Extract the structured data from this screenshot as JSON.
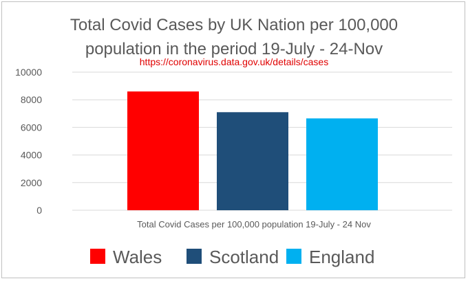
{
  "chart_data": {
    "type": "bar",
    "title_lines": [
      "Total Covid Cases by UK Nation per 100,000",
      "population in the period 19-July - 24-Nov"
    ],
    "source_url": "https://coronavirus.data.gov.uk/details/cases",
    "xlabel": "Total Covid Cases per 100,000 population 19-July - 24 Nov",
    "ylabel": "",
    "ylim": [
      0,
      10000
    ],
    "y_ticks": [
      "0",
      "2000",
      "4000",
      "6000",
      "8000",
      "10000"
    ],
    "grid": true,
    "legend_position": "bottom",
    "series": [
      {
        "name": "Wales",
        "values": [
          8600
        ],
        "color": "#ff0000"
      },
      {
        "name": "Scotland",
        "values": [
          7100
        ],
        "color": "#1f4e79"
      },
      {
        "name": "England",
        "values": [
          6650
        ],
        "color": "#00b0f0"
      }
    ]
  }
}
